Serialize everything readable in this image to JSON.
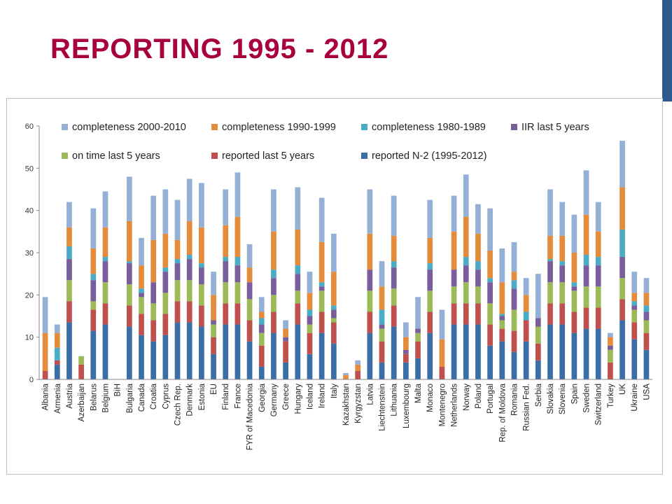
{
  "slide": {
    "title": "REPORTING  1995 - 2012",
    "accent_color": "#2a5b8c",
    "title_color": "#a8003e"
  },
  "chart_data": {
    "type": "bar",
    "stacked": true,
    "title": "",
    "xlabel": "",
    "ylabel": "",
    "ylim": [
      0,
      60
    ],
    "yticks": [
      0,
      10,
      20,
      30,
      40,
      50,
      60
    ],
    "grid": false,
    "legend_position": "top",
    "categories": [
      "Albania",
      "Armenia",
      "Austria",
      "Azerbaijan",
      "Belarus",
      "Belgium",
      "BiH",
      "Bulgaria",
      "Canada",
      "Croatia",
      "Cyprus",
      "Czech Rep.",
      "Denmark",
      "Estonia",
      "EU",
      "Finland",
      "France",
      "FYR of Macedonia",
      "Georgia",
      "Germany",
      "Greece",
      "Hungary",
      "Iceland",
      "Ireland",
      "Italy",
      "Kazakhstan",
      "Kyrgyzstan",
      "Latvia",
      "Liechtenstein",
      "Lithuania",
      "Luxembourg",
      "Malta",
      "Monaco",
      "Montenegro",
      "Netherlands",
      "Norway",
      "Poland",
      "Portugal",
      "Rep. of Moldova",
      "Romania",
      "Russian Fed.",
      "Serbia",
      "Slovakia",
      "Slovenia",
      "Spain",
      "Sweden",
      "Switzerland",
      "Turkey",
      "UK",
      "Ukraine",
      "USA"
    ],
    "series": [
      {
        "name": "reported N-2 (1995-2012)",
        "color": "#3a6ea5",
        "values": [
          0,
          3.5,
          13.5,
          0,
          11.5,
          13,
          0,
          12.5,
          10.5,
          9,
          10.5,
          13.5,
          13.5,
          12.5,
          6,
          13,
          13,
          9,
          3,
          11,
          4,
          13,
          6,
          11,
          8.5,
          0,
          0,
          11,
          4,
          12.5,
          4,
          5,
          11,
          0,
          13,
          13,
          13,
          8,
          9,
          6.5,
          9,
          4.5,
          13,
          13,
          11,
          12,
          12,
          0,
          14,
          9.5,
          7
        ]
      },
      {
        "name": "reported last 5 years",
        "color": "#c0504d",
        "values": [
          2,
          1,
          5,
          3.5,
          5,
          5,
          0,
          5,
          5,
          5,
          5,
          5,
          5,
          5,
          4,
          5,
          5,
          5,
          5,
          5,
          5,
          5,
          5,
          5,
          5,
          0,
          2,
          5,
          5,
          5,
          2,
          4,
          5,
          3,
          5,
          5,
          5,
          5,
          3,
          5,
          5,
          4,
          5,
          5,
          5,
          5,
          5,
          4,
          5,
          4,
          4
        ]
      },
      {
        "name": "on time last 5 years",
        "color": "#9bbb59",
        "values": [
          0,
          0,
          5,
          2,
          2,
          5,
          0,
          5,
          4,
          4,
          5,
          5,
          5,
          5,
          3,
          5,
          5,
          5,
          3,
          4,
          0,
          3,
          2,
          5,
          1,
          0,
          0,
          5,
          3,
          4,
          0,
          2,
          5,
          0,
          4,
          5,
          4,
          5,
          2,
          5,
          0,
          4,
          5,
          5,
          5,
          5,
          5,
          3,
          5,
          3,
          3
        ]
      },
      {
        "name": "IIR last 5 years",
        "color": "#7a5d9b",
        "values": [
          0,
          0,
          5,
          0,
          5,
          5,
          0,
          5,
          1,
          5,
          5,
          4,
          5,
          4,
          1,
          5,
          4,
          4,
          2,
          4,
          1,
          4,
          2,
          1,
          2,
          0,
          0,
          5,
          1,
          5,
          1,
          1,
          5,
          0,
          4,
          4,
          4,
          5,
          1,
          5,
          0,
          2,
          5,
          4,
          1,
          5,
          5,
          1,
          5,
          1,
          2
        ]
      },
      {
        "name": "completeness 1980-1989",
        "color": "#4bacc6",
        "values": [
          0,
          3,
          3,
          0,
          1.5,
          1,
          0,
          0.5,
          1,
          0,
          1,
          1,
          1,
          1,
          0,
          1,
          2,
          0,
          1.5,
          2,
          0,
          2,
          1.5,
          1,
          1,
          0,
          0,
          0,
          3.5,
          1.5,
          0,
          0,
          1.5,
          0,
          0,
          2,
          2,
          1,
          0.5,
          2,
          2,
          0,
          0.5,
          1,
          1,
          2.5,
          2,
          0,
          6.5,
          1,
          1.5
        ]
      },
      {
        "name": "completeness 1990-1999",
        "color": "#e48c3c",
        "values": [
          9,
          3.5,
          4.5,
          0,
          6,
          7,
          0,
          9.5,
          5.5,
          10,
          8,
          4.5,
          8,
          8.5,
          6,
          7.5,
          9.5,
          3.5,
          1.5,
          9,
          2,
          8.5,
          4,
          9.5,
          8,
          1,
          1.5,
          8.5,
          5.5,
          6,
          3,
          0,
          6,
          6.5,
          9,
          9.5,
          6.5,
          6.5,
          7.5,
          2,
          4,
          0,
          5.5,
          6,
          7,
          9.5,
          6,
          2,
          10,
          2,
          3
        ]
      },
      {
        "name": "completeness 2000-2010",
        "color": "#95b0d6",
        "values": [
          8.5,
          2,
          6,
          0,
          9.5,
          8.5,
          0,
          10.5,
          6.5,
          10.5,
          10.5,
          9.5,
          10,
          10.5,
          5.5,
          8.5,
          10.5,
          5.5,
          3.5,
          10,
          2,
          10,
          5,
          10.5,
          9,
          0.5,
          1,
          10.5,
          6,
          9.5,
          3.5,
          7.5,
          9,
          7,
          8.5,
          10,
          7,
          10,
          8,
          7,
          4,
          10.5,
          11,
          8,
          9,
          10.5,
          7,
          1,
          11,
          5,
          3.5
        ]
      }
    ]
  }
}
